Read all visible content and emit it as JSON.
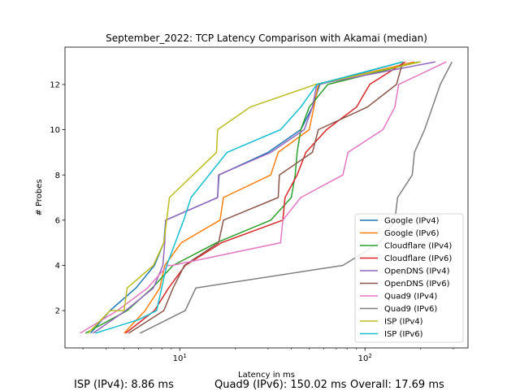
{
  "chart_data": {
    "type": "line",
    "title": "September_2022: TCP Latency Comparison with Akamai (median)",
    "xlabel": "Latency in ms",
    "ylabel": "# Probes",
    "xscale": "log",
    "xlim": [
      2.4,
      360
    ],
    "ylim": [
      0.35,
      13.65
    ],
    "x_ticks": [
      {
        "value": 10,
        "base": "10",
        "exp": "1"
      },
      {
        "value": 100,
        "base": "10",
        "exp": "2"
      }
    ],
    "y_ticks": [
      2,
      4,
      6,
      8,
      10,
      12
    ],
    "grid": false,
    "legend_position": "lower-right",
    "series": [
      {
        "name": "Google (IPv4)",
        "color": "#1f77b4",
        "x": [
          3.3,
          4.2,
          5.8,
          7.3,
          8.2,
          8.4,
          16,
          16.3,
          30,
          45,
          52,
          57,
          160
        ],
        "y": [
          1,
          2,
          3,
          4,
          5,
          6,
          7,
          8,
          9,
          10,
          11,
          12,
          13
        ]
      },
      {
        "name": "Google (IPv6)",
        "color": "#ff7f0e",
        "x": [
          5,
          6.5,
          7.8,
          8.3,
          10.2,
          16.5,
          17.2,
          31,
          34,
          50,
          53,
          56,
          185
        ],
        "y": [
          1,
          2,
          3,
          4,
          5,
          6,
          7,
          8,
          9,
          10,
          11,
          12,
          13
        ]
      },
      {
        "name": "Cloudflare (IPv4)",
        "color": "#2ca02c",
        "x": [
          3.1,
          5.2,
          7.1,
          9.2,
          15.8,
          31,
          40,
          42,
          43,
          45,
          50,
          63,
          195
        ],
        "y": [
          1,
          2,
          3,
          4,
          5,
          6,
          7,
          8,
          9,
          10,
          11,
          12,
          13
        ]
      },
      {
        "name": "Cloudflare (IPv6)",
        "color": "#d62728",
        "x": [
          5.1,
          7.3,
          8.7,
          10.7,
          16.8,
          36,
          37,
          43,
          48,
          62,
          90,
          106,
          165
        ],
        "y": [
          1,
          2,
          3,
          4,
          5,
          6,
          7,
          8,
          9,
          10,
          11,
          12,
          13
        ]
      },
      {
        "name": "OpenDNS (IPv4)",
        "color": "#9467bd",
        "x": [
          3.4,
          5.1,
          7.2,
          8.1,
          8.3,
          8.4,
          16,
          16.2,
          31,
          47,
          52,
          55,
          240
        ],
        "y": [
          1,
          2,
          3,
          4,
          5,
          6,
          7,
          8,
          9,
          10,
          11,
          12,
          13
        ]
      },
      {
        "name": "OpenDNS (IPv6)",
        "color": "#8c564b",
        "x": [
          5.3,
          8.2,
          9.2,
          10.6,
          16.2,
          17.2,
          34,
          34.5,
          52,
          56,
          103,
          148,
          160
        ],
        "y": [
          1,
          2,
          3,
          4,
          5,
          6,
          7,
          8,
          9,
          10,
          11,
          12,
          13
        ]
      },
      {
        "name": "Quad9 (IPv4)",
        "color": "#e377c2",
        "x": [
          2.9,
          4.6,
          6.7,
          8.6,
          9.1,
          35,
          36,
          45,
          76,
          81,
          125,
          145,
          152,
          275
        ],
        "y": [
          1,
          2,
          3,
          4,
          4,
          5,
          6,
          7,
          8,
          9,
          10,
          11,
          12,
          13
        ]
      },
      {
        "name": "Quad9 (IPv6)",
        "color": "#7f7f7f",
        "x": [
          6.1,
          10.7,
          12.2,
          76,
          120,
          145,
          150,
          180,
          185,
          210,
          255,
          295
        ],
        "y": [
          1,
          2,
          3,
          4,
          5,
          6,
          7,
          8,
          9,
          10,
          12,
          13
        ]
      },
      {
        "name": "ISP (IPv4)",
        "color": "#bcbd22",
        "x": [
          3.2,
          4.2,
          5,
          5.2,
          7.2,
          8.2,
          8.8,
          15.8,
          16,
          24,
          54,
          200
        ],
        "y": [
          1,
          2,
          2,
          3,
          4,
          5,
          7,
          9,
          10,
          11,
          12,
          13
        ]
      },
      {
        "name": "ISP (IPv6)",
        "color": "#17becf",
        "x": [
          3.5,
          6,
          7.5,
          8.5,
          10.5,
          11.5,
          18,
          35,
          45,
          55,
          160
        ],
        "y": [
          1,
          1.6,
          2,
          4,
          6,
          7,
          9,
          10,
          11,
          12,
          13
        ]
      }
    ]
  },
  "footer": {
    "isp_ipv4": "ISP (IPv4): 8.86 ms",
    "quad9_ipv6": "Quad9 (IPv6): 150.02 ms",
    "overall": "Overall: 17.69 ms"
  }
}
